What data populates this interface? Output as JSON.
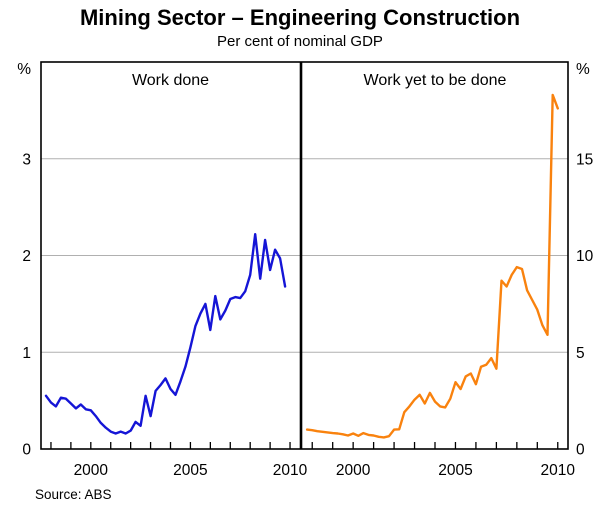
{
  "title": "Mining Sector – Engineering Construction",
  "subtitle": "Per cent of nominal GDP",
  "source": "Source: ABS",
  "chart_data": {
    "type": "line",
    "title": "Mining Sector – Engineering Construction",
    "subtitle": "Per cent of nominal GDP",
    "source": "Source: ABS",
    "grid": true,
    "xlim": [
      1997.5,
      2010.5
    ],
    "x_ticks_labeled": [
      2000,
      2005,
      2010
    ],
    "x_minor_tick_start": 1998,
    "x_minor_tick_end": 2010,
    "colors": {
      "grid": "#b0b0b0",
      "frame": "#000000",
      "divider": "#000000",
      "text": "#000000",
      "work_done": "#1515d6",
      "work_yet_to_be_done": "#f9820e"
    },
    "panels": [
      {
        "title": "Work done",
        "axis_side": "left",
        "axis_unit": "%",
        "ylim": [
          0,
          4
        ],
        "yticks": [
          0,
          1,
          2,
          3
        ],
        "series": {
          "name": "Work done",
          "color": "#1515d6",
          "x": [
            1997.75,
            1998.0,
            1998.25,
            1998.5,
            1998.75,
            1999.0,
            1999.25,
            1999.5,
            1999.75,
            2000.0,
            2000.25,
            2000.5,
            2000.75,
            2001.0,
            2001.25,
            2001.5,
            2001.75,
            2002.0,
            2002.25,
            2002.5,
            2002.75,
            2003.0,
            2003.25,
            2003.5,
            2003.75,
            2004.0,
            2004.25,
            2004.5,
            2004.75,
            2005.0,
            2005.25,
            2005.5,
            2005.75,
            2006.0,
            2006.25,
            2006.5,
            2006.75,
            2007.0,
            2007.25,
            2007.5,
            2007.75,
            2008.0,
            2008.25,
            2008.5,
            2008.75,
            2009.0,
            2009.25,
            2009.5,
            2009.75
          ],
          "values": [
            0.55,
            0.48,
            0.44,
            0.53,
            0.52,
            0.47,
            0.42,
            0.46,
            0.41,
            0.4,
            0.34,
            0.27,
            0.22,
            0.18,
            0.16,
            0.18,
            0.16,
            0.19,
            0.28,
            0.24,
            0.55,
            0.34,
            0.6,
            0.66,
            0.73,
            0.62,
            0.56,
            0.7,
            0.85,
            1.05,
            1.27,
            1.4,
            1.5,
            1.23,
            1.58,
            1.34,
            1.43,
            1.55,
            1.57,
            1.56,
            1.63,
            1.8,
            2.22,
            1.76,
            2.16,
            1.85,
            2.06,
            1.97,
            1.68
          ]
        }
      },
      {
        "title": "Work yet to be done",
        "axis_side": "right",
        "axis_unit": "%",
        "ylim": [
          0,
          20
        ],
        "yticks": [
          0,
          5,
          10,
          15
        ],
        "series": {
          "name": "Work yet to be done",
          "color": "#f9820e",
          "x": [
            1997.75,
            1998.0,
            1998.25,
            1998.5,
            1998.75,
            1999.0,
            1999.25,
            1999.5,
            1999.75,
            2000.0,
            2000.25,
            2000.5,
            2000.75,
            2001.0,
            2001.25,
            2001.5,
            2001.75,
            2002.0,
            2002.25,
            2002.5,
            2002.75,
            2003.0,
            2003.25,
            2003.5,
            2003.75,
            2004.0,
            2004.25,
            2004.5,
            2004.75,
            2005.0,
            2005.25,
            2005.5,
            2005.75,
            2006.0,
            2006.25,
            2006.5,
            2006.75,
            2007.0,
            2007.25,
            2007.5,
            2007.75,
            2008.0,
            2008.25,
            2008.5,
            2008.75,
            2009.0,
            2009.25,
            2009.5,
            2009.75,
            2010.0
          ],
          "values": [
            1.0,
            0.97,
            0.92,
            0.89,
            0.86,
            0.82,
            0.8,
            0.76,
            0.7,
            0.8,
            0.68,
            0.82,
            0.73,
            0.7,
            0.63,
            0.6,
            0.66,
            1.0,
            1.02,
            1.9,
            2.2,
            2.55,
            2.8,
            2.35,
            2.9,
            2.45,
            2.2,
            2.15,
            2.6,
            3.45,
            3.1,
            3.75,
            3.9,
            3.35,
            4.25,
            4.35,
            4.7,
            4.15,
            8.7,
            8.4,
            9.0,
            9.4,
            9.3,
            8.2,
            7.7,
            7.2,
            6.4,
            5.9,
            18.3,
            17.6
          ]
        }
      }
    ]
  }
}
